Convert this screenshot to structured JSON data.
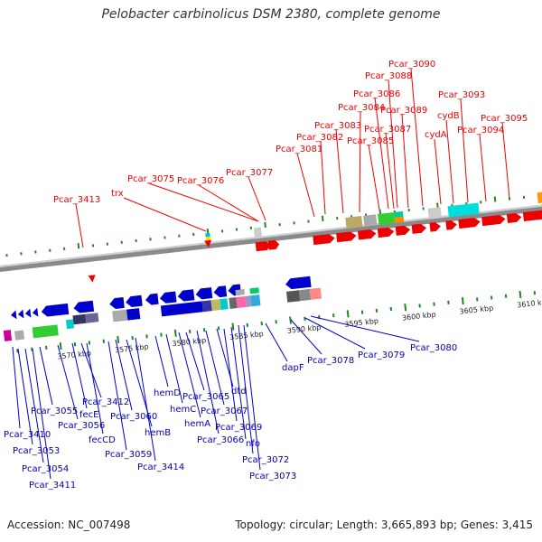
{
  "header": {
    "title": "Pelobacter carbinolicus DSM 2380, complete genome"
  },
  "footer": {
    "accession": "Accession: NC_007498",
    "info": "Topology: circular; Length: 3,665,893 bp; Genes: 3,415"
  },
  "scale_labels": [
    "3570 kbp",
    "3575 kbp",
    "3580 kbp",
    "3585 kbp",
    "3590 kbp",
    "3595 kbp",
    "3600 kbp",
    "3605 kbp",
    "3610 kbp"
  ],
  "upper_labels": [
    "Pcar_3413",
    "trx",
    "Pcar_3075",
    "Pcar_3076",
    "Pcar_3077",
    "Pcar_3081",
    "Pcar_3082",
    "Pcar_3083",
    "Pcar_3084",
    "Pcar_3085",
    "Pcar_3086",
    "Pcar_3087",
    "Pcar_3088",
    "Pcar_3089",
    "Pcar_3090",
    "cydA",
    "cydB",
    "Pcar_3093",
    "Pcar_3094",
    "Pcar_3095"
  ],
  "lower_labels": [
    "Pcar_3410",
    "Pcar_3053",
    "Pcar_3054",
    "Pcar_3411",
    "Pcar_3055",
    "Pcar_3056",
    "fecE",
    "Pcar_3412",
    "fecCD",
    "Pcar_3059",
    "Pcar_3060",
    "hemB",
    "Pcar_3414",
    "hemD",
    "hemC",
    "hemA",
    "Pcar_3065",
    "Pcar_3066",
    "Pcar_3067",
    "dtd",
    "Pcar_3069",
    "nfo",
    "Pcar_3072",
    "Pcar_3073",
    "dapF",
    "Pcar_3078",
    "Pcar_3079",
    "Pcar_3080"
  ],
  "colors": {
    "forward": "#ee0000",
    "reverse": "#0000bb",
    "backbone": "#888888",
    "tick": "#228822"
  }
}
